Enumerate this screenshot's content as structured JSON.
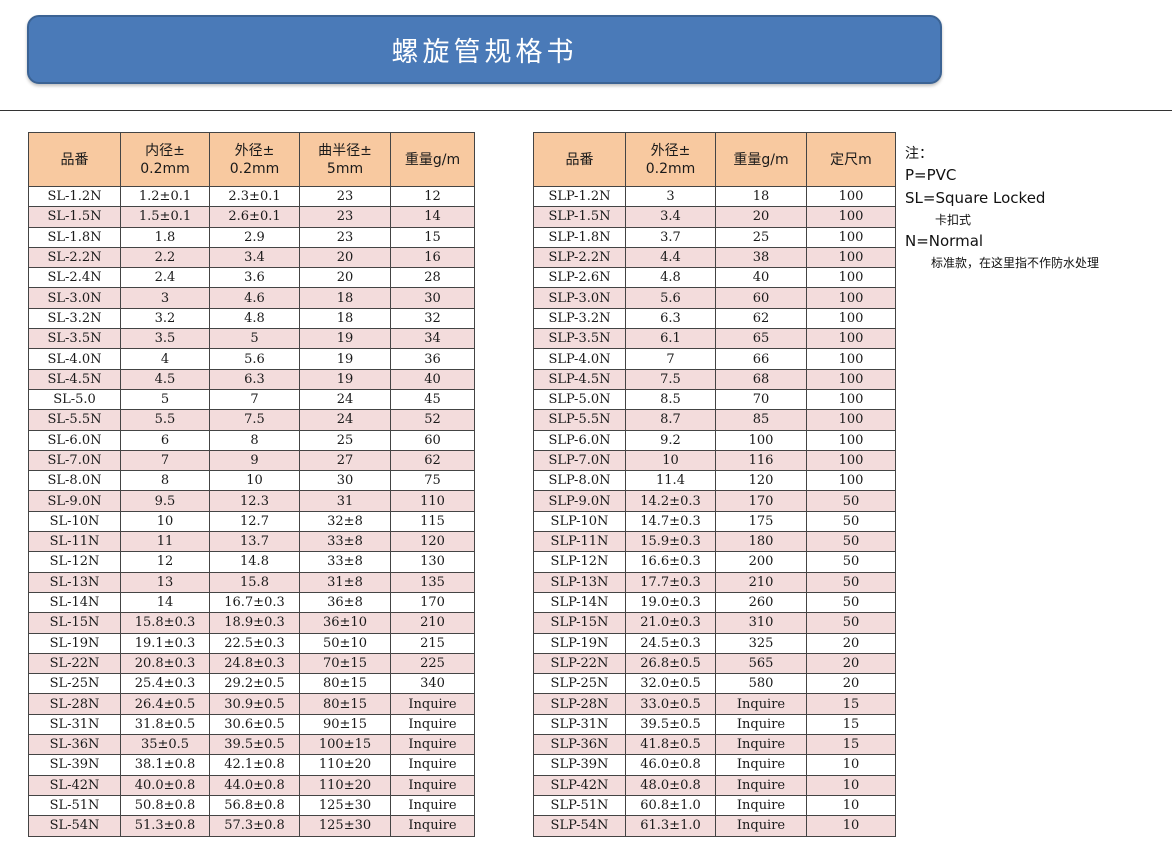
{
  "title": "螺旋管规格书",
  "left_table": {
    "headers": [
      [
        "品番"
      ],
      [
        "内径±",
        "0.2mm"
      ],
      [
        "外径±",
        "0.2mm"
      ],
      [
        "曲半径±",
        "5mm"
      ],
      [
        "重量g/m"
      ]
    ],
    "rows": [
      [
        "SL-1.2N",
        "1.2±0.1",
        "2.3±0.1",
        "23",
        "12"
      ],
      [
        "SL-1.5N",
        "1.5±0.1",
        "2.6±0.1",
        "23",
        "14"
      ],
      [
        "SL-1.8N",
        "1.8",
        "2.9",
        "23",
        "15"
      ],
      [
        "SL-2.2N",
        "2.2",
        "3.4",
        "20",
        "16"
      ],
      [
        "SL-2.4N",
        "2.4",
        "3.6",
        "20",
        "28"
      ],
      [
        "SL-3.0N",
        "3",
        "4.6",
        "18",
        "30"
      ],
      [
        "SL-3.2N",
        "3.2",
        "4.8",
        "18",
        "32"
      ],
      [
        "SL-3.5N",
        "3.5",
        "5",
        "19",
        "34"
      ],
      [
        "SL-4.0N",
        "4",
        "5.6",
        "19",
        "36"
      ],
      [
        "SL-4.5N",
        "4.5",
        "6.3",
        "19",
        "40"
      ],
      [
        "SL-5.0",
        "5",
        "7",
        "24",
        "45"
      ],
      [
        "SL-5.5N",
        "5.5",
        "7.5",
        "24",
        "52"
      ],
      [
        "SL-6.0N",
        "6",
        "8",
        "25",
        "60"
      ],
      [
        "SL-7.0N",
        "7",
        "9",
        "27",
        "62"
      ],
      [
        "SL-8.0N",
        "8",
        "10",
        "30",
        "75"
      ],
      [
        "SL-9.0N",
        "9.5",
        "12.3",
        "31",
        "110"
      ],
      [
        "SL-10N",
        "10",
        "12.7",
        "32±8",
        "115"
      ],
      [
        "SL-11N",
        "11",
        "13.7",
        "33±8",
        "120"
      ],
      [
        "SL-12N",
        "12",
        "14.8",
        "33±8",
        "130"
      ],
      [
        "SL-13N",
        "13",
        "15.8",
        "31±8",
        "135"
      ],
      [
        "SL-14N",
        "14",
        "16.7±0.3",
        "36±8",
        "170"
      ],
      [
        "SL-15N",
        "15.8±0.3",
        "18.9±0.3",
        "36±10",
        "210"
      ],
      [
        "SL-19N",
        "19.1±0.3",
        "22.5±0.3",
        "50±10",
        "215"
      ],
      [
        "SL-22N",
        "20.8±0.3",
        "24.8±0.3",
        "70±15",
        "225"
      ],
      [
        "SL-25N",
        "25.4±0.3",
        "29.2±0.5",
        "80±15",
        "340"
      ],
      [
        "SL-28N",
        "26.4±0.5",
        "30.9±0.5",
        "80±15",
        "Inquire"
      ],
      [
        "SL-31N",
        "31.8±0.5",
        "30.6±0.5",
        "90±15",
        "Inquire"
      ],
      [
        "SL-36N",
        "35±0.5",
        "39.5±0.5",
        "100±15",
        "Inquire"
      ],
      [
        "SL-39N",
        "38.1±0.8",
        "42.1±0.8",
        "110±20",
        "Inquire"
      ],
      [
        "SL-42N",
        "40.0±0.8",
        "44.0±0.8",
        "110±20",
        "Inquire"
      ],
      [
        "SL-51N",
        "50.8±0.8",
        "56.8±0.8",
        "125±30",
        "Inquire"
      ],
      [
        "SL-54N",
        "51.3±0.8",
        "57.3±0.8",
        "125±30",
        "Inquire"
      ]
    ]
  },
  "right_table": {
    "headers": [
      [
        "品番"
      ],
      [
        "外径±",
        "0.2mm"
      ],
      [
        "重量g/m"
      ],
      [
        "定尺m"
      ]
    ],
    "rows": [
      [
        "SLP-1.2N",
        "3",
        "18",
        "100"
      ],
      [
        "SLP-1.5N",
        "3.4",
        "20",
        "100"
      ],
      [
        "SLP-1.8N",
        "3.7",
        "25",
        "100"
      ],
      [
        "SLP-2.2N",
        "4.4",
        "38",
        "100"
      ],
      [
        "SLP-2.6N",
        "4.8",
        "40",
        "100"
      ],
      [
        "SLP-3.0N",
        "5.6",
        "60",
        "100"
      ],
      [
        "SLP-3.2N",
        "6.3",
        "62",
        "100"
      ],
      [
        "SLP-3.5N",
        "6.1",
        "65",
        "100"
      ],
      [
        "SLP-4.0N",
        "7",
        "66",
        "100"
      ],
      [
        "SLP-4.5N",
        "7.5",
        "68",
        "100"
      ],
      [
        "SLP-5.0N",
        "8.5",
        "70",
        "100"
      ],
      [
        "SLP-5.5N",
        "8.7",
        "85",
        "100"
      ],
      [
        "SLP-6.0N",
        "9.2",
        "100",
        "100"
      ],
      [
        "SLP-7.0N",
        "10",
        "116",
        "100"
      ],
      [
        "SLP-8.0N",
        "11.4",
        "120",
        "100"
      ],
      [
        "SLP-9.0N",
        "14.2±0.3",
        "170",
        "50"
      ],
      [
        "SLP-10N",
        "14.7±0.3",
        "175",
        "50"
      ],
      [
        "SLP-11N",
        "15.9±0.3",
        "180",
        "50"
      ],
      [
        "SLP-12N",
        "16.6±0.3",
        "200",
        "50"
      ],
      [
        "SLP-13N",
        "17.7±0.3",
        "210",
        "50"
      ],
      [
        "SLP-14N",
        "19.0±0.3",
        "260",
        "50"
      ],
      [
        "SLP-15N",
        "21.0±0.3",
        "310",
        "50"
      ],
      [
        "SLP-19N",
        "24.5±0.3",
        "325",
        "20"
      ],
      [
        "SLP-22N",
        "26.8±0.5",
        "565",
        "20"
      ],
      [
        "SLP-25N",
        "32.0±0.5",
        "580",
        "20"
      ],
      [
        "SLP-28N",
        "33.0±0.5",
        "Inquire",
        "15"
      ],
      [
        "SLP-31N",
        "39.5±0.5",
        "Inquire",
        "15"
      ],
      [
        "SLP-36N",
        "41.8±0.5",
        "Inquire",
        "15"
      ],
      [
        "SLP-39N",
        "46.0±0.8",
        "Inquire",
        "10"
      ],
      [
        "SLP-42N",
        "48.0±0.8",
        "Inquire",
        "10"
      ],
      [
        "SLP-51N",
        "60.8±1.0",
        "Inquire",
        "10"
      ],
      [
        "SLP-54N",
        "61.3±1.0",
        "Inquire",
        "10"
      ]
    ]
  },
  "notes": {
    "title": "注：",
    "p_line": "P=PVC",
    "sl_line": "SL=Square Locked",
    "sl_sub": "卡扣式",
    "n_line": "N=Normal",
    "n_sub": "标准款，在这里指不作防水处理"
  }
}
